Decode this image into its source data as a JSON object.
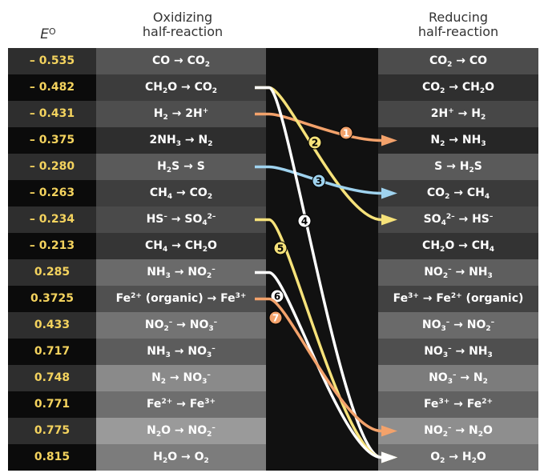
{
  "header": {
    "e_label": "E",
    "e_sup": "O",
    "ox_line1": "Oxidizing",
    "ox_line2": "half-reaction",
    "re_line1": "Reducing",
    "re_line2": "half-reaction"
  },
  "rows": [
    {
      "e": "– 0.535",
      "ox": "CO → CO<sub>2</sub>",
      "re": "CO<sub>2</sub> → CO"
    },
    {
      "e": "– 0.482",
      "ox": "CH<sub>2</sub>O → CO<sub>2</sub>",
      "re": "CO<sub>2</sub> → CH<sub>2</sub>O"
    },
    {
      "e": "– 0.431",
      "ox": "H<sub>2</sub> → 2H<sup>+</sup>",
      "re": "2H<sup>+</sup> → H<sub>2</sub>"
    },
    {
      "e": "– 0.375",
      "ox": "2NH<sub>3</sub> → N<sub>2</sub>",
      "re": "N<sub>2</sub> → NH<sub>3</sub>"
    },
    {
      "e": "– 0.280",
      "ox": "H<sub>2</sub>S → S",
      "re": "S → H<sub>2</sub>S"
    },
    {
      "e": "– 0.263",
      "ox": "CH<sub>4</sub> → CO<sub>2</sub>",
      "re": "CO<sub>2</sub> → CH<sub>4</sub>"
    },
    {
      "e": "– 0.234",
      "ox": "HS<sup>–</sup> → SO<sub>4</sub><sup>2–</sup>",
      "re": "SO<sub>4</sub><sup>2–</sup> → HS<sup>–</sup>"
    },
    {
      "e": "– 0.213",
      "ox": "CH<sub>4</sub> → CH<sub>2</sub>O",
      "re": "CH<sub>2</sub>O → CH<sub>4</sub>"
    },
    {
      "e": "0.285",
      "ox": "NH<sub>3</sub> → NO<sub>2</sub><sup>–</sup>",
      "re": "NO<sub>2</sub><sup>–</sup> → NH<sub>3</sub>"
    },
    {
      "e": "0.3725",
      "ox": "Fe<sup>2+</sup> (organic) → Fe<sup>3+</sup>",
      "re": "Fe<sup>3+</sup> → Fe<sup>2+</sup> (organic)"
    },
    {
      "e": "0.433",
      "ox": "NO<sub>2</sub><sup>–</sup> → NO<sub>3</sub><sup>–</sup>",
      "re": "NO<sub>3</sub><sup>–</sup> → NO<sub>2</sub><sup>–</sup>"
    },
    {
      "e": "0.717",
      "ox": "NH<sub>3</sub> → NO<sub>3</sub><sup>–</sup>",
      "re": "NO<sub>3</sub><sup>–</sup> → NH<sub>3</sub>"
    },
    {
      "e": "0.748",
      "ox": "N<sub>2</sub> → NO<sub>3</sub><sup>–</sup>",
      "re": "NO<sub>3</sub><sup>–</sup> → N<sub>2</sub>"
    },
    {
      "e": "0.771",
      "ox": "Fe<sup>2+</sup> → Fe<sup>3+</sup>",
      "re": "Fe<sup>3+</sup> → Fe<sup>2+</sup>"
    },
    {
      "e": "0.775",
      "ox": "N<sub>2</sub>O → NO<sub>2</sub><sup>–</sup>",
      "re": "NO<sub>2</sub><sup>–</sup> → N<sub>2</sub>O"
    },
    {
      "e": "0.815",
      "ox": "H<sub>2</sub>O → O<sub>2</sub>",
      "re": "O<sub>2</sub> → H<sub>2</sub>O"
    }
  ],
  "arrows": [
    {
      "label": "1",
      "from": 2,
      "to": 3,
      "color": "#f3a26b",
      "label_text_color": "#ffffff"
    },
    {
      "label": "2",
      "from": 1,
      "to": 6,
      "color": "#f6e27a",
      "label_text_color": "#000000"
    },
    {
      "label": "3",
      "from": 4,
      "to": 5,
      "color": "#9fd3ef",
      "label_text_color": "#000000"
    },
    {
      "label": "4",
      "from": 1,
      "to": 15,
      "color": "#ffffff",
      "label_text_color": "#000000"
    },
    {
      "label": "5",
      "from": 6,
      "to": 15,
      "color": "#f6e27a",
      "label_text_color": "#000000"
    },
    {
      "label": "6",
      "from": 8,
      "to": 15,
      "color": "#ffffff",
      "label_text_color": "#000000"
    },
    {
      "label": "7",
      "from": 9,
      "to": 14,
      "color": "#f3a26b",
      "label_text_color": "#ffffff"
    }
  ],
  "colors": {
    "e_text": "#f4d35e",
    "gap": "#111111"
  }
}
